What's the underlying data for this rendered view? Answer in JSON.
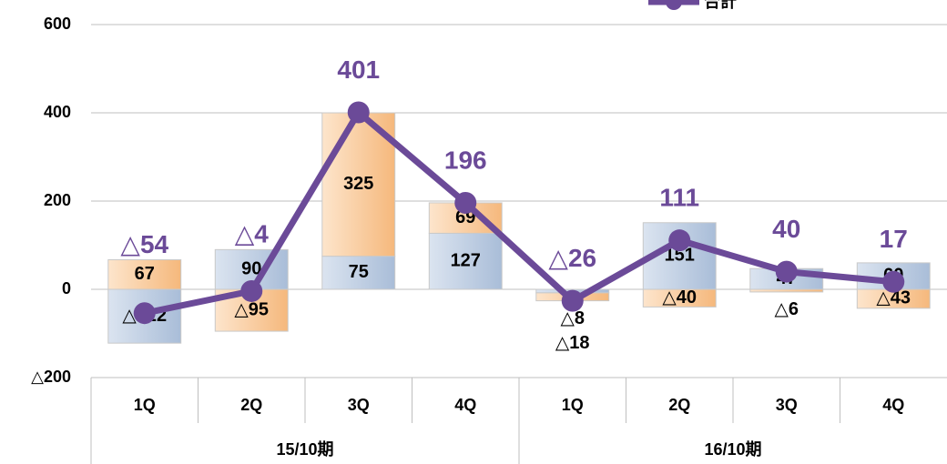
{
  "chart_data": {
    "type": "bar",
    "categories": [
      "1Q",
      "2Q",
      "3Q",
      "4Q",
      "1Q",
      "2Q",
      "3Q",
      "4Q"
    ],
    "groups": [
      "15/10期",
      "16/10期"
    ],
    "series": [
      {
        "color": "#b7c8df",
        "values": [
          -122,
          90,
          75,
          127,
          -8,
          151,
          47,
          60
        ],
        "value_labels": [
          "△122",
          "90",
          "75",
          "127",
          "△8",
          "151",
          "47",
          "60"
        ]
      },
      {
        "color": "#f8c796",
        "values": [
          67,
          -95,
          325,
          69,
          -18,
          -40,
          -6,
          -43
        ],
        "value_labels": [
          "67",
          "△95",
          "325",
          "69",
          "△18",
          "△40",
          "△6",
          "△43"
        ]
      },
      {
        "name": "合計",
        "type": "line",
        "color": "#6b4a98",
        "values": [
          -54,
          -4,
          401,
          196,
          -26,
          111,
          40,
          17
        ],
        "value_labels": [
          "△54",
          "△4",
          "401",
          "196",
          "△26",
          "111",
          "40",
          "17"
        ]
      }
    ],
    "ylim": [
      -200,
      600
    ],
    "yticks": [
      {
        "value": -200,
        "label": "△200"
      },
      0,
      200,
      400,
      600
    ],
    "grid": true
  }
}
